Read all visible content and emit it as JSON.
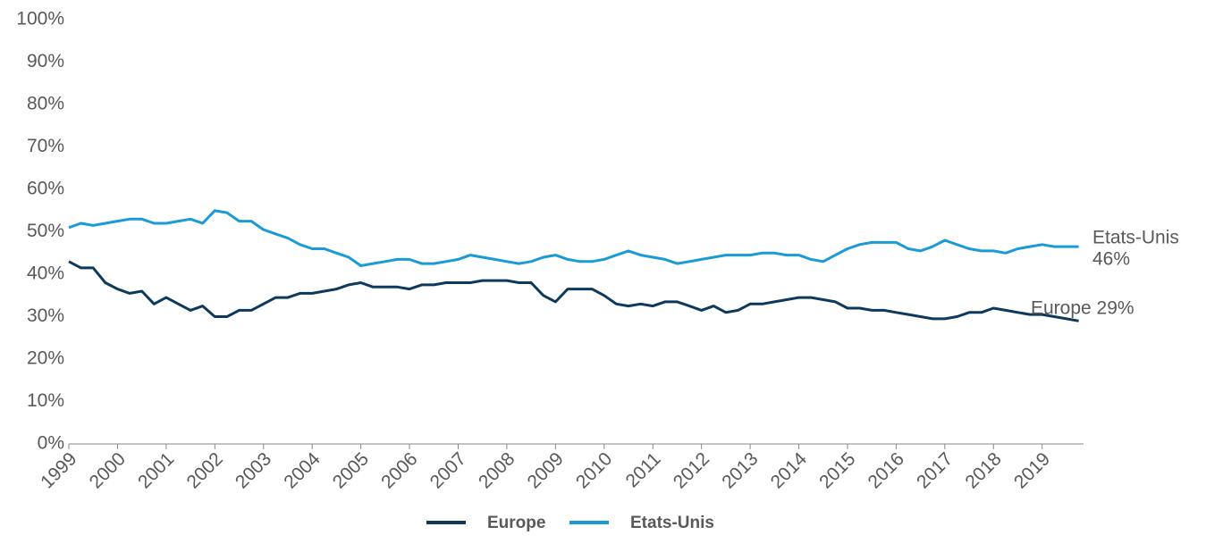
{
  "chart_data": {
    "type": "line",
    "x": [
      1999,
      1999.25,
      1999.5,
      1999.75,
      2000,
      2000.25,
      2000.5,
      2000.75,
      2001,
      2001.25,
      2001.5,
      2001.75,
      2002,
      2002.25,
      2002.5,
      2002.75,
      2003,
      2003.25,
      2003.5,
      2003.75,
      2004,
      2004.25,
      2004.5,
      2004.75,
      2005,
      2005.25,
      2005.5,
      2005.75,
      2006,
      2006.25,
      2006.5,
      2006.75,
      2007,
      2007.25,
      2007.5,
      2007.75,
      2008,
      2008.25,
      2008.5,
      2008.75,
      2009,
      2009.25,
      2009.5,
      2009.75,
      2010,
      2010.25,
      2010.5,
      2010.75,
      2011,
      2011.25,
      2011.5,
      2011.75,
      2012,
      2012.25,
      2012.5,
      2012.75,
      2013,
      2013.25,
      2013.5,
      2013.75,
      2014,
      2014.25,
      2014.5,
      2014.75,
      2015,
      2015.25,
      2015.5,
      2015.75,
      2016,
      2016.25,
      2016.5,
      2016.75,
      2017,
      2017.25,
      2017.5,
      2017.75,
      2018,
      2018.25,
      2018.5,
      2018.75,
      2019,
      2019.25,
      2019.5,
      2019.75
    ],
    "series": [
      {
        "name": "Europe",
        "color": "#0d3a5c",
        "values": [
          43,
          41.5,
          41.5,
          38,
          36.5,
          35.5,
          36,
          33,
          34.5,
          33,
          31.5,
          32.5,
          30,
          30,
          31.5,
          31.5,
          33,
          34.5,
          34.5,
          35.5,
          35.5,
          36,
          36.5,
          37.5,
          38,
          37,
          37,
          37,
          36.5,
          37.5,
          37.5,
          38,
          38,
          38,
          38.5,
          38.5,
          38.5,
          38,
          38,
          35,
          33.5,
          36.5,
          36.5,
          36.5,
          35,
          33,
          32.5,
          33,
          32.5,
          33.5,
          33.5,
          32.5,
          31.5,
          32.5,
          31,
          31.5,
          33,
          33,
          33.5,
          34,
          34.5,
          34.5,
          34,
          33.5,
          32,
          32,
          31.5,
          31.5,
          31,
          30.5,
          30,
          29.5,
          29.5,
          30,
          31,
          31,
          32,
          31.5,
          31,
          30.5,
          30.5,
          30,
          29.5,
          29
        ]
      },
      {
        "name": "Etats-Unis",
        "color": "#1a9bd7",
        "values": [
          51,
          52,
          51.5,
          52,
          52.5,
          53,
          53,
          52,
          52,
          52.5,
          53,
          52,
          55,
          54.5,
          52.5,
          52.5,
          50.5,
          49.5,
          48.5,
          47,
          46,
          46,
          45,
          44,
          42,
          42.5,
          43,
          43.5,
          43.5,
          42.5,
          42.5,
          43,
          43.5,
          44.5,
          44,
          43.5,
          43,
          42.5,
          43,
          44,
          44.5,
          43.5,
          43,
          43,
          43.5,
          44.5,
          45.5,
          44.5,
          44,
          43.5,
          42.5,
          43,
          43.5,
          44,
          44.5,
          44.5,
          44.5,
          45,
          45,
          44.5,
          44.5,
          43.5,
          43,
          44.5,
          46,
          47,
          47.5,
          47.5,
          47.5,
          46,
          45.5,
          46.5,
          48,
          47,
          46,
          45.5,
          45.5,
          45,
          46,
          46.5,
          47,
          46.5,
          46.5,
          46.5
        ]
      }
    ],
    "xlim": [
      1999,
      2019.85
    ],
    "xticks": [
      1999,
      2000,
      2001,
      2002,
      2003,
      2004,
      2005,
      2006,
      2007,
      2008,
      2009,
      2010,
      2011,
      2012,
      2013,
      2014,
      2015,
      2016,
      2017,
      2018,
      2019
    ],
    "ylim": [
      0,
      100
    ],
    "yticks": [
      {
        "value": 0,
        "label": "0%"
      },
      {
        "value": 10,
        "label": "10%"
      },
      {
        "value": 20,
        "label": "20%"
      },
      {
        "value": 30,
        "label": "30%"
      },
      {
        "value": 40,
        "label": "40%"
      },
      {
        "value": 50,
        "label": "50%"
      },
      {
        "value": 60,
        "label": "60%"
      },
      {
        "value": 70,
        "label": "70%"
      },
      {
        "value": 80,
        "label": "80%"
      },
      {
        "value": 90,
        "label": "90%"
      },
      {
        "value": 100,
        "label": "100%"
      }
    ],
    "annotations": [
      "Etats-Unis",
      "46%",
      "Europe 29%"
    ],
    "legend": "bottom",
    "grid": false
  }
}
